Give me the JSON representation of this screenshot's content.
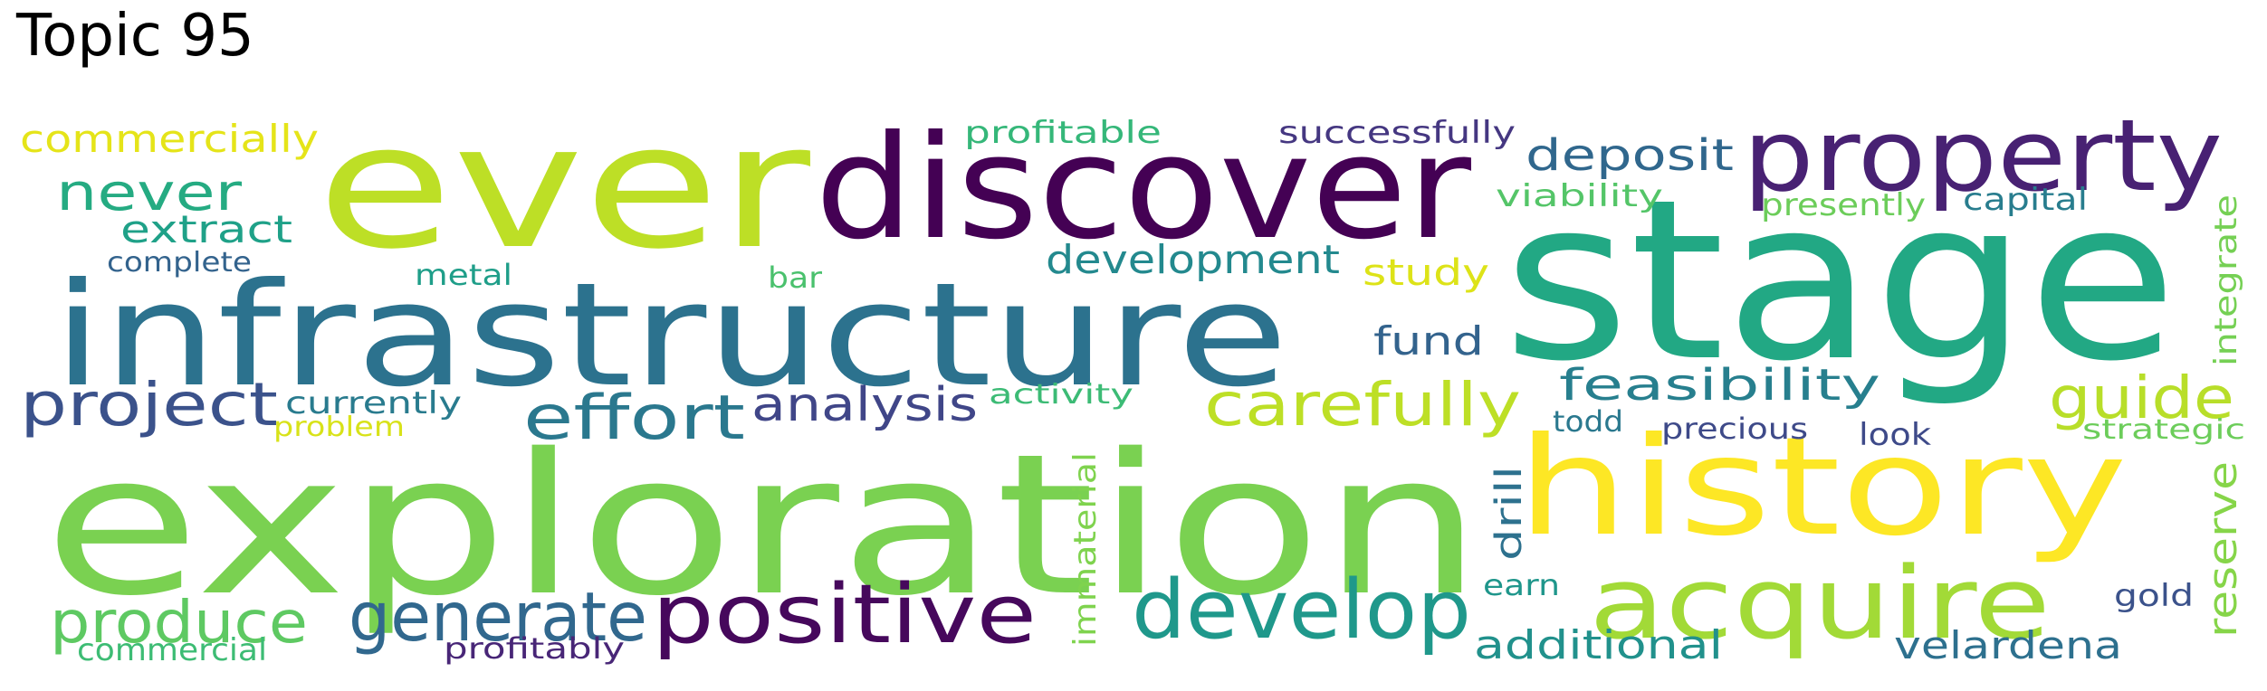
{
  "title": "Topic 95",
  "words": [
    {
      "text": "exploration",
      "color": "#7ad151"
    },
    {
      "text": "infrastructure",
      "color": "#2c728e"
    },
    {
      "text": "stage",
      "color": "#22a884"
    },
    {
      "text": "ever",
      "color": "#bddf26"
    },
    {
      "text": "discover",
      "color": "#440154"
    },
    {
      "text": "history",
      "color": "#fde725"
    },
    {
      "text": "property",
      "color": "#482173"
    },
    {
      "text": "acquire",
      "color": "#a2da37"
    },
    {
      "text": "positive",
      "color": "#46085c"
    },
    {
      "text": "develop",
      "color": "#1f988b"
    },
    {
      "text": "carefully",
      "color": "#bddf26"
    },
    {
      "text": "effort",
      "color": "#2a788e"
    },
    {
      "text": "project",
      "color": "#3b528b"
    },
    {
      "text": "generate",
      "color": "#31688e"
    },
    {
      "text": "produce",
      "color": "#5ec962"
    },
    {
      "text": "guide",
      "color": "#b8de29"
    },
    {
      "text": "never",
      "color": "#25ab82"
    },
    {
      "text": "analysis",
      "color": "#404688"
    },
    {
      "text": "deposit",
      "color": "#30678d"
    },
    {
      "text": "feasibility",
      "color": "#277f8e"
    },
    {
      "text": "development",
      "color": "#23898e"
    },
    {
      "text": "additional",
      "color": "#21918c"
    },
    {
      "text": "velardena",
      "color": "#2d708e"
    },
    {
      "text": "commercially",
      "color": "#e5e419"
    },
    {
      "text": "extract",
      "color": "#1fa188"
    },
    {
      "text": "fund",
      "color": "#33638d"
    },
    {
      "text": "study",
      "color": "#dde318"
    },
    {
      "text": "successfully",
      "color": "#453781"
    },
    {
      "text": "profitable",
      "color": "#35b779"
    },
    {
      "text": "commercial",
      "color": "#3dbc74"
    },
    {
      "text": "profitably",
      "color": "#482677"
    },
    {
      "text": "metal",
      "color": "#1f9e89"
    },
    {
      "text": "complete",
      "color": "#33638d"
    },
    {
      "text": "bar",
      "color": "#4ac16d"
    },
    {
      "text": "currently",
      "color": "#297b8e"
    },
    {
      "text": "problem",
      "color": "#d8e219"
    },
    {
      "text": "activity",
      "color": "#3cbb75"
    },
    {
      "text": "viability",
      "color": "#54c568"
    },
    {
      "text": "presently",
      "color": "#6ccd5a"
    },
    {
      "text": "capital",
      "color": "#287d8e"
    },
    {
      "text": "todd",
      "color": "#2a788e"
    },
    {
      "text": "precious",
      "color": "#3e4a89"
    },
    {
      "text": "look",
      "color": "#3e4a89"
    },
    {
      "text": "strategic",
      "color": "#6ccd5a"
    },
    {
      "text": "earn",
      "color": "#1f968b"
    },
    {
      "text": "gold",
      "color": "#3b528b"
    },
    {
      "text": "integrate",
      "color": "#75d054"
    },
    {
      "text": "reserve",
      "color": "#86d549"
    },
    {
      "text": "drill",
      "color": "#2d718e"
    },
    {
      "text": "immaterial",
      "color": "#7fd34e"
    }
  ]
}
